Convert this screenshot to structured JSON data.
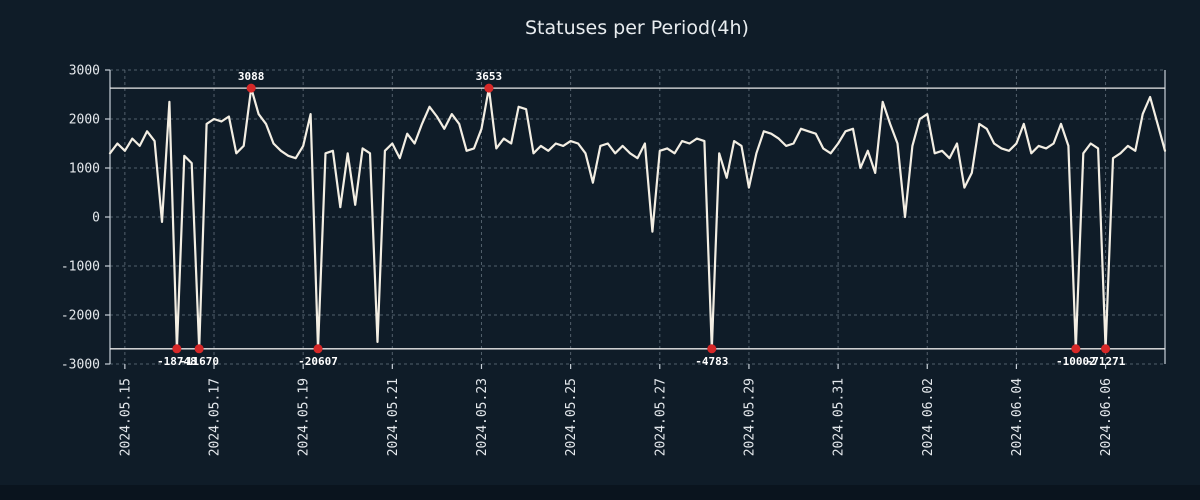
{
  "window": {
    "title": "Statuses per Period(4h)"
  },
  "chart_data": {
    "type": "line",
    "title": "Statuses per Period(4h)",
    "xlabel": "",
    "ylabel": "",
    "ylim": [
      -3000,
      3000
    ],
    "y_ticks": [
      3000,
      2000,
      1000,
      0,
      -1000,
      -2000,
      -3000
    ],
    "x_ticks": [
      {
        "label": "2024.05.15",
        "index": 2
      },
      {
        "label": "2024.05.17",
        "index": 14
      },
      {
        "label": "2024.05.19",
        "index": 26
      },
      {
        "label": "2024.05.21",
        "index": 38
      },
      {
        "label": "2024.05.23",
        "index": 50
      },
      {
        "label": "2024.05.25",
        "index": 62
      },
      {
        "label": "2024.05.27",
        "index": 74
      },
      {
        "label": "2024.05.29",
        "index": 86
      },
      {
        "label": "2024.05.31",
        "index": 98
      },
      {
        "label": "2024.06.02",
        "index": 110
      },
      {
        "label": "2024.06.04",
        "index": 122
      },
      {
        "label": "2024.06.06",
        "index": 134
      }
    ],
    "period_hours": 4,
    "clip_top": 2630,
    "clip_bottom": -2690,
    "grid": true,
    "legend": false,
    "values": [
      1300,
      1500,
      1350,
      1600,
      1450,
      1750,
      1550,
      -100,
      2350,
      -18748,
      1250,
      1100,
      -11670,
      1900,
      2000,
      1950,
      2050,
      1300,
      1450,
      3088,
      2100,
      1900,
      1500,
      1350,
      1250,
      1200,
      1450,
      2100,
      -20607,
      1300,
      1350,
      200,
      1300,
      250,
      1400,
      1300,
      -2550,
      1350,
      1500,
      1200,
      1700,
      1500,
      1900,
      2250,
      2050,
      1800,
      2100,
      1900,
      1350,
      1400,
      1800,
      3653,
      1400,
      1600,
      1500,
      2250,
      2200,
      1300,
      1450,
      1350,
      1500,
      1450,
      1550,
      1500,
      1300,
      700,
      1450,
      1500,
      1300,
      1450,
      1300,
      1200,
      1500,
      -300,
      1350,
      1400,
      1300,
      1550,
      1500,
      1600,
      1550,
      -4783,
      1300,
      800,
      1550,
      1450,
      600,
      1300,
      1750,
      1700,
      1600,
      1450,
      1500,
      1800,
      1750,
      1700,
      1400,
      1300,
      1500,
      1750,
      1800,
      1000,
      1350,
      900,
      2350,
      1900,
      1500,
      0,
      1450,
      2000,
      2100,
      1300,
      1350,
      1200,
      1500,
      600,
      900,
      1900,
      1800,
      1500,
      1400,
      1350,
      1500,
      1900,
      1300,
      1450,
      1400,
      1500,
      1900,
      1450,
      -10002,
      1300,
      1500,
      1400,
      -71271,
      1200,
      1300,
      1450,
      1350,
      2100,
      2450,
      1900,
      1350
    ],
    "annotations": [
      {
        "index": 9,
        "label": "-18748",
        "side": "bottom"
      },
      {
        "index": 12,
        "label": "-11670",
        "side": "bottom"
      },
      {
        "index": 19,
        "label": "3088",
        "side": "top"
      },
      {
        "index": 28,
        "label": "-20607",
        "side": "bottom"
      },
      {
        "index": 51,
        "label": "3653",
        "side": "top"
      },
      {
        "index": 81,
        "label": "-4783",
        "side": "bottom"
      },
      {
        "index": 130,
        "label": "-10002",
        "side": "bottom"
      },
      {
        "index": 134,
        "label": "-71271",
        "side": "bottom"
      }
    ],
    "colors": {
      "background": "#0f1c28",
      "footer": "#0a141e",
      "line": "#f3eee3",
      "grid": "#8a97a3",
      "spine": "#c8d0d8",
      "clip_line": "#e9e9e9",
      "marker": "#d62828",
      "text": "#e4e8ec",
      "annotation_text": "#ffffff",
      "title_text": "#e8ecef"
    }
  }
}
